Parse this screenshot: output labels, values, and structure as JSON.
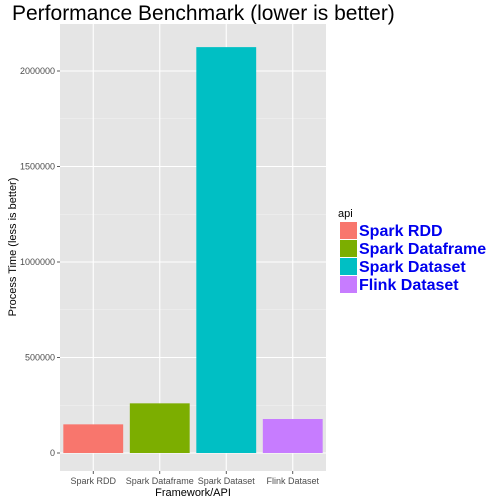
{
  "chart_data": {
    "type": "bar",
    "title": "Performance Benchmark (lower is better)",
    "xlabel": "Framework/API",
    "ylabel": "Process Time (less is better)",
    "categories": [
      "Spark RDD",
      "Spark Dataframe",
      "Spark Dataset",
      "Flink Dataset"
    ],
    "values": [
      150000,
      260000,
      2125000,
      178000
    ],
    "colors": [
      "#F8766D",
      "#7CAE00",
      "#00BFC4",
      "#C77CFF"
    ],
    "ylim": [
      0,
      2225000
    ],
    "yticks": [
      0,
      500000,
      1000000,
      1500000,
      2000000
    ],
    "ytick_labels": [
      "0",
      "500000",
      "1000000",
      "1500000",
      "2000000"
    ],
    "grid": true,
    "legend": {
      "title": "api",
      "position": "right",
      "label_color": "#0000ee",
      "entries": [
        "Spark RDD",
        "Spark Dataframe",
        "Spark Dataset",
        "Flink Dataset"
      ]
    }
  }
}
